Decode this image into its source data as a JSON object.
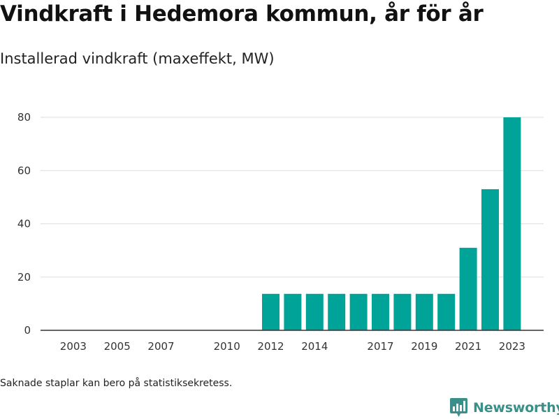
{
  "title": "Vindkraft i Hedemora kommun, år för år",
  "subtitle": "Installerad vindkraft (maxeffekt, MW)",
  "note": "Saknade staplar kan bero på statistiksekretess.",
  "brand": {
    "name": "Newsworthy",
    "icon": "newsworthy-logo-icon"
  },
  "colors": {
    "bar": "#00a398",
    "grid": "#dddddd",
    "axis": "#333333",
    "brand": "#3a8f89"
  },
  "chart_data": {
    "type": "bar",
    "title": "Vindkraft i Hedemora kommun, år för år",
    "subtitle": "Installerad vindkraft (maxeffekt, MW)",
    "xlabel": "",
    "ylabel": "",
    "categories": [
      2002,
      2003,
      2004,
      2005,
      2006,
      2007,
      2008,
      2009,
      2010,
      2011,
      2012,
      2013,
      2014,
      2015,
      2016,
      2017,
      2018,
      2019,
      2020,
      2021,
      2022,
      2023
    ],
    "values": [
      null,
      null,
      null,
      null,
      null,
      null,
      null,
      null,
      null,
      null,
      13.7,
      13.7,
      13.7,
      13.7,
      13.7,
      13.7,
      13.7,
      13.7,
      13.7,
      31,
      53,
      80
    ],
    "x_tick_labels": [
      "2003",
      "2005",
      "2007",
      "2010",
      "2012",
      "2014",
      "2017",
      "2019",
      "2021",
      "2023"
    ],
    "y_ticks": [
      0,
      20,
      40,
      60,
      80
    ],
    "ylim": [
      0,
      87
    ],
    "grid": true,
    "legend": "none"
  }
}
